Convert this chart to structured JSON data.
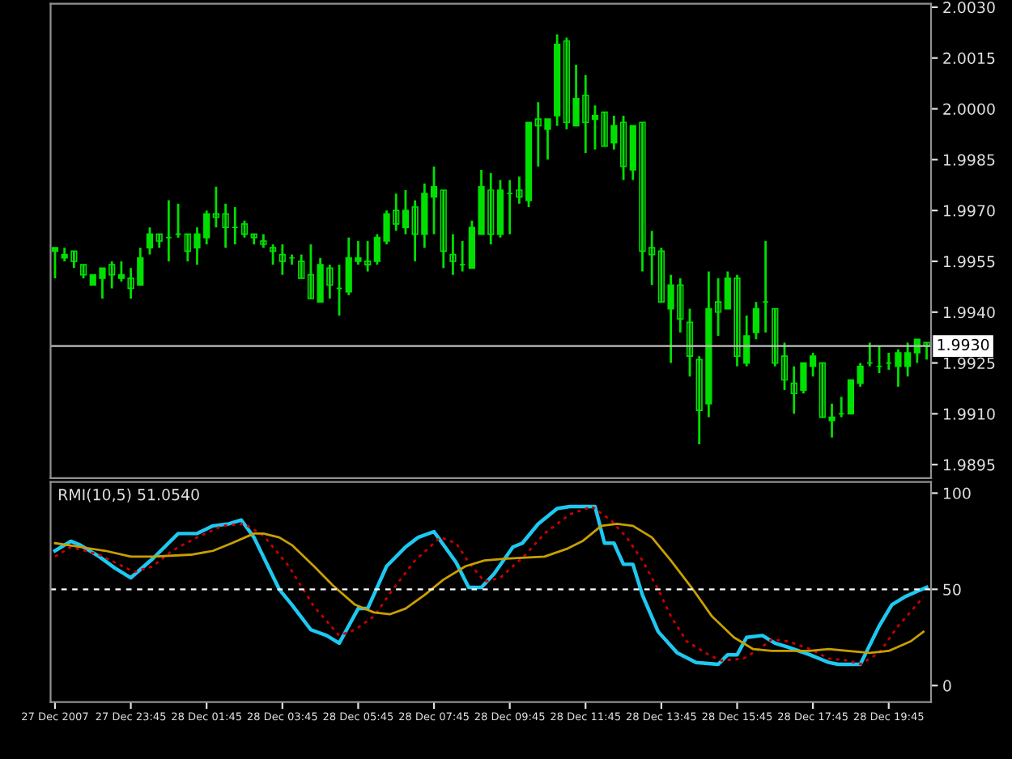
{
  "chart_data": [
    {
      "type": "candlestick",
      "color": "#00e000",
      "x": [
        "2007-12-27T21:45",
        "2007-12-27T22:00",
        "2007-12-27T22:15",
        "2007-12-27T22:30",
        "2007-12-27T22:45",
        "2007-12-27T23:00",
        "2007-12-27T23:15",
        "2007-12-27T23:30",
        "2007-12-27T23:45",
        "2007-12-28T00:00",
        "2007-12-28T00:15",
        "2007-12-28T00:30",
        "2007-12-28T00:45",
        "2007-12-28T01:00",
        "2007-12-28T01:15",
        "2007-12-28T01:30",
        "2007-12-28T01:45",
        "2007-12-28T02:00",
        "2007-12-28T02:15",
        "2007-12-28T02:30",
        "2007-12-28T02:45",
        "2007-12-28T03:00",
        "2007-12-28T03:15",
        "2007-12-28T03:30",
        "2007-12-28T03:45",
        "2007-12-28T04:00",
        "2007-12-28T04:15",
        "2007-12-28T04:30",
        "2007-12-28T04:45",
        "2007-12-28T05:00",
        "2007-12-28T05:15",
        "2007-12-28T05:30",
        "2007-12-28T05:45",
        "2007-12-28T06:00",
        "2007-12-28T06:15",
        "2007-12-28T06:30",
        "2007-12-28T06:45",
        "2007-12-28T07:00",
        "2007-12-28T07:15",
        "2007-12-28T07:30",
        "2007-12-28T07:45",
        "2007-12-28T08:00",
        "2007-12-28T08:15",
        "2007-12-28T08:30",
        "2007-12-28T08:45",
        "2007-12-28T09:00",
        "2007-12-28T09:15",
        "2007-12-28T09:30",
        "2007-12-28T09:45",
        "2007-12-28T10:00",
        "2007-12-28T10:15",
        "2007-12-28T10:30",
        "2007-12-28T10:45",
        "2007-12-28T11:00",
        "2007-12-28T11:15",
        "2007-12-28T11:30",
        "2007-12-28T11:45",
        "2007-12-28T12:00",
        "2007-12-28T12:15",
        "2007-12-28T12:30",
        "2007-12-28T12:45",
        "2007-12-28T13:00",
        "2007-12-28T13:15",
        "2007-12-28T13:30",
        "2007-12-28T13:45",
        "2007-12-28T14:00",
        "2007-12-28T14:15",
        "2007-12-28T14:30",
        "2007-12-28T14:45",
        "2007-12-28T15:00",
        "2007-12-28T15:15",
        "2007-12-28T15:30",
        "2007-12-28T15:45",
        "2007-12-28T16:00",
        "2007-12-28T16:15",
        "2007-12-28T16:30",
        "2007-12-28T16:45",
        "2007-12-28T17:00",
        "2007-12-28T17:15",
        "2007-12-28T17:30",
        "2007-12-28T17:45",
        "2007-12-28T18:00",
        "2007-12-28T18:15",
        "2007-12-28T18:30",
        "2007-12-28T18:45",
        "2007-12-28T19:00",
        "2007-12-28T19:15",
        "2007-12-28T19:30",
        "2007-12-28T19:45",
        "2007-12-28T20:00",
        "2007-12-28T20:15",
        "2007-12-28T20:30",
        "2007-12-28T20:45"
      ],
      "ohlc": [
        [
          1.9958,
          1.9959,
          1.995,
          1.9959
        ],
        [
          1.9956,
          1.9959,
          1.9955,
          1.9957
        ],
        [
          1.9958,
          1.9958,
          1.9953,
          1.9955
        ],
        [
          1.9954,
          1.9954,
          1.995,
          1.9951
        ],
        [
          1.9948,
          1.9951,
          1.9948,
          1.9951
        ],
        [
          1.995,
          1.9953,
          1.9944,
          1.9953
        ],
        [
          1.9954,
          1.9955,
          1.9947,
          1.9951
        ],
        [
          1.995,
          1.9955,
          1.9949,
          1.9951
        ],
        [
          1.995,
          1.9953,
          1.9944,
          1.9947
        ],
        [
          1.9948,
          1.9959,
          1.9948,
          1.9956
        ],
        [
          1.9959,
          1.9965,
          1.9957,
          1.9963
        ],
        [
          1.9963,
          1.9963,
          1.9959,
          1.9961
        ],
        [
          1.9962,
          1.9973,
          1.9955,
          1.9962
        ],
        [
          1.9963,
          1.9972,
          1.9962,
          1.9963
        ],
        [
          1.9963,
          1.9963,
          1.9955,
          1.9958
        ],
        [
          1.9959,
          1.9965,
          1.9954,
          1.9963
        ],
        [
          1.9962,
          1.997,
          1.996,
          1.9969
        ],
        [
          1.9969,
          1.9977,
          1.9965,
          1.9968
        ],
        [
          1.9969,
          1.9972,
          1.9959,
          1.9965
        ],
        [
          1.9965,
          1.9971,
          1.996,
          1.9965
        ],
        [
          1.9966,
          1.9967,
          1.9962,
          1.9963
        ],
        [
          1.9963,
          1.9963,
          1.996,
          1.9962
        ],
        [
          1.9961,
          1.9963,
          1.9959,
          1.996
        ],
        [
          1.9959,
          1.996,
          1.9954,
          1.9958
        ],
        [
          1.9957,
          1.996,
          1.9951,
          1.9955
        ],
        [
          1.9956,
          1.9957,
          1.9954,
          1.9956
        ],
        [
          1.9955,
          1.9957,
          1.995,
          1.995
        ],
        [
          1.9951,
          1.996,
          1.9944,
          1.9944
        ],
        [
          1.9943,
          1.9956,
          1.9943,
          1.9954
        ],
        [
          1.9953,
          1.9954,
          1.9944,
          1.9948
        ],
        [
          1.9947,
          1.9954,
          1.9939,
          1.9947
        ],
        [
          1.9946,
          1.9962,
          1.9945,
          1.9956
        ],
        [
          1.9955,
          1.9961,
          1.9954,
          1.9956
        ],
        [
          1.9955,
          1.9961,
          1.9952,
          1.9954
        ],
        [
          1.9955,
          1.9963,
          1.9954,
          1.9962
        ],
        [
          1.9961,
          1.997,
          1.996,
          1.9969
        ],
        [
          1.997,
          1.9975,
          1.9964,
          1.9966
        ],
        [
          1.9965,
          1.9976,
          1.9963,
          1.997
        ],
        [
          1.9971,
          1.9973,
          1.9955,
          1.9963
        ],
        [
          1.9963,
          1.9978,
          1.9959,
          1.9975
        ],
        [
          1.9974,
          1.9983,
          1.9963,
          1.9977
        ],
        [
          1.9976,
          1.9976,
          1.9953,
          1.9958
        ],
        [
          1.9957,
          1.9963,
          1.9951,
          1.9955
        ],
        [
          1.9954,
          1.9961,
          1.9952,
          1.9954
        ],
        [
          1.9953,
          1.9967,
          1.9953,
          1.9965
        ],
        [
          1.9963,
          1.9982,
          1.9963,
          1.9977
        ],
        [
          1.9976,
          1.9981,
          1.996,
          1.9963
        ],
        [
          1.9963,
          1.9979,
          1.9962,
          1.9976
        ],
        [
          1.9975,
          1.9979,
          1.9963,
          1.9975
        ],
        [
          1.9976,
          1.998,
          1.9972,
          1.9974
        ],
        [
          1.9973,
          1.9996,
          1.9971,
          1.9996
        ],
        [
          1.9997,
          2.0002,
          1.9983,
          1.9995
        ],
        [
          1.9994,
          1.9997,
          1.9985,
          1.9997
        ],
        [
          1.9998,
          2.0022,
          1.9995,
          2.0019
        ],
        [
          2.002,
          2.0021,
          1.9994,
          1.9996
        ],
        [
          1.9995,
          2.0013,
          1.9995,
          2.0003
        ],
        [
          2.0004,
          2.001,
          1.9987,
          1.9996
        ],
        [
          1.9997,
          2.0001,
          1.9988,
          1.9998
        ],
        [
          1.9999,
          1.9999,
          1.9989,
          1.9989
        ],
        [
          1.999,
          1.9998,
          1.9988,
          1.9995
        ],
        [
          1.9996,
          1.9998,
          1.9979,
          1.9983
        ],
        [
          1.9982,
          1.9995,
          1.9979,
          1.9995
        ],
        [
          1.9996,
          1.9996,
          1.9952,
          1.9958
        ],
        [
          1.9959,
          1.9964,
          1.9948,
          1.9957
        ],
        [
          1.9958,
          1.9959,
          1.9943,
          1.9943
        ],
        [
          1.9941,
          1.9951,
          1.9925,
          1.9948
        ],
        [
          1.9948,
          1.995,
          1.9934,
          1.9938
        ],
        [
          1.9937,
          1.9941,
          1.9921,
          1.9927
        ],
        [
          1.9926,
          1.9927,
          1.9901,
          1.9911
        ],
        [
          1.9913,
          1.9952,
          1.9909,
          1.9941
        ],
        [
          1.9943,
          1.995,
          1.9933,
          1.994
        ],
        [
          1.9941,
          1.9952,
          1.9941,
          1.995
        ],
        [
          1.995,
          1.9951,
          1.9924,
          1.9927
        ],
        [
          1.9925,
          1.9939,
          1.9924,
          1.9933
        ],
        [
          1.9934,
          1.9943,
          1.9932,
          1.9941
        ],
        [
          1.9943,
          1.9961,
          1.9934,
          1.9943
        ],
        [
          1.9941,
          1.9941,
          1.9924,
          1.9925
        ],
        [
          1.9927,
          1.9931,
          1.9917,
          1.992
        ],
        [
          1.9919,
          1.9924,
          1.991,
          1.9916
        ],
        [
          1.9917,
          1.9925,
          1.9916,
          1.9925
        ],
        [
          1.9924,
          1.9928,
          1.9921,
          1.9927
        ],
        [
          1.9925,
          1.9925,
          1.9909,
          1.9909
        ],
        [
          1.9908,
          1.9913,
          1.9903,
          1.9909
        ],
        [
          1.991,
          1.9915,
          1.9909,
          1.991
        ],
        [
          1.991,
          1.992,
          1.991,
          1.992
        ],
        [
          1.9919,
          1.9925,
          1.9918,
          1.9924
        ],
        [
          1.9925,
          1.9931,
          1.9924,
          1.9925
        ],
        [
          1.9924,
          1.993,
          1.9922,
          1.9924
        ],
        [
          1.9925,
          1.9928,
          1.9923,
          1.9925
        ],
        [
          1.9924,
          1.9929,
          1.9918,
          1.9928
        ],
        [
          1.9924,
          1.9931,
          1.9921,
          1.9928
        ],
        [
          1.9928,
          1.9932,
          1.9925,
          1.9932
        ],
        [
          1.9931,
          1.9931,
          1.9926,
          1.993
        ]
      ],
      "xlim": [
        "2007-12-27T21:38",
        "2007-12-28T20:52"
      ],
      "ylim": [
        1.9891,
        2.0031
      ],
      "yticks": [
        {
          "value": 2.003,
          "label": "2.0030"
        },
        {
          "value": 2.0015,
          "label": "2.0015"
        },
        {
          "value": 2.0,
          "label": "2.0000"
        },
        {
          "value": 1.9985,
          "label": "1.9985"
        },
        {
          "value": 1.997,
          "label": "1.9970"
        },
        {
          "value": 1.9955,
          "label": "1.9955"
        },
        {
          "value": 1.994,
          "label": "1.9940"
        },
        {
          "value": 1.9925,
          "label": "1.9925"
        },
        {
          "value": 1.991,
          "label": "1.9910"
        },
        {
          "value": 1.9895,
          "label": "1.9895"
        }
      ],
      "ref_lines": [
        {
          "axis": "y",
          "value": 1.993,
          "label": "1.9930",
          "color": "#c0c0c0"
        }
      ],
      "tick_labels": "y",
      "grid": false
    },
    {
      "type": "line",
      "title": "RMI(10,5) 51.0540",
      "series": [
        {
          "color": "#1ec8f0",
          "line_style": "solid",
          "x": [
            "2007-12-27T21:45",
            "2007-12-27T22:10",
            "2007-12-27T22:25",
            "2007-12-27T22:55",
            "2007-12-27T23:20",
            "2007-12-27T23:45",
            "2007-12-28T00:20",
            "2007-12-28T01:00",
            "2007-12-28T01:30",
            "2007-12-28T01:55",
            "2007-12-28T02:20",
            "2007-12-28T02:40",
            "2007-12-28T03:00",
            "2007-12-28T03:40",
            "2007-12-28T04:00",
            "2007-12-28T04:30",
            "2007-12-28T04:55",
            "2007-12-28T05:15",
            "2007-12-28T05:45",
            "2007-12-28T06:00",
            "2007-12-28T06:30",
            "2007-12-28T07:00",
            "2007-12-28T07:20",
            "2007-12-28T07:45",
            "2007-12-28T08:20",
            "2007-12-28T08:40",
            "2007-12-28T09:00",
            "2007-12-28T09:20",
            "2007-12-28T09:50",
            "2007-12-28T10:05",
            "2007-12-28T10:30",
            "2007-12-28T11:00",
            "2007-12-28T11:20",
            "2007-12-28T12:00",
            "2007-12-28T12:15",
            "2007-12-28T12:30",
            "2007-12-28T12:45",
            "2007-12-28T13:00",
            "2007-12-28T13:15",
            "2007-12-28T13:40",
            "2007-12-28T14:10",
            "2007-12-28T14:40",
            "2007-12-28T15:15",
            "2007-12-28T15:30",
            "2007-12-28T15:45",
            "2007-12-28T16:00",
            "2007-12-28T16:25",
            "2007-12-28T16:45",
            "2007-12-28T17:05",
            "2007-12-28T17:40",
            "2007-12-28T18:10",
            "2007-12-28T18:25",
            "2007-12-28T19:00",
            "2007-12-28T19:30",
            "2007-12-28T19:50",
            "2007-12-28T20:10",
            "2007-12-28T20:30",
            "2007-12-28T20:45"
          ],
          "values": [
            70,
            75,
            73,
            67,
            61,
            56,
            66,
            79,
            79,
            83,
            84,
            86,
            77,
            50,
            42,
            29,
            26,
            22,
            40,
            40,
            62,
            72,
            77,
            80,
            64,
            51,
            51,
            58,
            72,
            74,
            84,
            92,
            93,
            93,
            74,
            74,
            63,
            63,
            47,
            28,
            17,
            12,
            11,
            16,
            16,
            25,
            26,
            22,
            20,
            16,
            12,
            11,
            11,
            31,
            42,
            46,
            49,
            51
          ]
        },
        {
          "color": "#c80000",
          "line_style": "dotted",
          "x": [
            "2007-12-27T21:45",
            "2007-12-27T22:10",
            "2007-12-27T22:55",
            "2007-12-27T23:20",
            "2007-12-27T23:50",
            "2007-12-28T00:20",
            "2007-12-28T00:50",
            "2007-12-28T01:30",
            "2007-12-28T02:10",
            "2007-12-28T02:45",
            "2007-12-28T03:15",
            "2007-12-28T03:55",
            "2007-12-28T04:35",
            "2007-12-28T05:15",
            "2007-12-28T05:40",
            "2007-12-28T06:10",
            "2007-12-28T06:40",
            "2007-12-28T07:15",
            "2007-12-28T07:55",
            "2007-12-28T08:20",
            "2007-12-28T08:40",
            "2007-12-28T09:05",
            "2007-12-28T09:30",
            "2007-12-28T10:10",
            "2007-12-28T10:40",
            "2007-12-28T11:20",
            "2007-12-28T11:55",
            "2007-12-28T12:25",
            "2007-12-28T12:50",
            "2007-12-28T13:15",
            "2007-12-28T13:40",
            "2007-12-28T14:00",
            "2007-12-28T14:25",
            "2007-12-28T15:00",
            "2007-12-28T15:20",
            "2007-12-28T15:55",
            "2007-12-28T16:20",
            "2007-12-28T16:40",
            "2007-12-28T17:05",
            "2007-12-28T17:40",
            "2007-12-28T18:10",
            "2007-12-28T18:40",
            "2007-12-28T19:00",
            "2007-12-28T19:30",
            "2007-12-28T20:00",
            "2007-12-28T20:40"
          ],
          "values": [
            67,
            72,
            68,
            64,
            59,
            62,
            70,
            77,
            83,
            84,
            78,
            62,
            41,
            26,
            29,
            36,
            50,
            65,
            77,
            74,
            64,
            54,
            56,
            68,
            79,
            89,
            93,
            86,
            77,
            65,
            50,
            36,
            23,
            16,
            13,
            14,
            19,
            24,
            23,
            19,
            14,
            13,
            11,
            17,
            31,
            46
          ]
        },
        {
          "color": "#c8a000",
          "line_style": "solid",
          "x": [
            "2007-12-27T21:45",
            "2007-12-27T22:25",
            "2007-12-27T23:05",
            "2007-12-27T23:45",
            "2007-12-28T00:20",
            "2007-12-28T01:20",
            "2007-12-28T01:55",
            "2007-12-28T02:25",
            "2007-12-28T03:00",
            "2007-12-28T03:15",
            "2007-12-28T03:40",
            "2007-12-28T04:00",
            "2007-12-28T04:35",
            "2007-12-28T05:05",
            "2007-12-28T05:40",
            "2007-12-28T06:10",
            "2007-12-28T06:35",
            "2007-12-28T07:00",
            "2007-12-28T07:30",
            "2007-12-28T08:00",
            "2007-12-28T08:35",
            "2007-12-28T09:05",
            "2007-12-28T09:40",
            "2007-12-28T10:40",
            "2007-12-28T11:15",
            "2007-12-28T11:40",
            "2007-12-28T12:10",
            "2007-12-28T12:35",
            "2007-12-28T13:00",
            "2007-12-28T13:30",
            "2007-12-28T14:00",
            "2007-12-28T14:35",
            "2007-12-28T15:05",
            "2007-12-28T15:40",
            "2007-12-28T16:10",
            "2007-12-28T16:40",
            "2007-12-28T17:40",
            "2007-12-28T18:10",
            "2007-12-28T18:40",
            "2007-12-28T19:15",
            "2007-12-28T19:45",
            "2007-12-28T20:20",
            "2007-12-28T20:40"
          ],
          "values": [
            74,
            72,
            70,
            67,
            67,
            68,
            70,
            74,
            79,
            79,
            77,
            73,
            62,
            52,
            42,
            38,
            37,
            40,
            47,
            55,
            62,
            65,
            66,
            67,
            71,
            75,
            83,
            84,
            83,
            77,
            65,
            50,
            36,
            25,
            19,
            18,
            18,
            19,
            18,
            17,
            18,
            23,
            28
          ]
        }
      ],
      "xlim": [
        "2007-12-27T21:38",
        "2007-12-28T20:52"
      ],
      "ylim": [
        -8.6,
        105.8
      ],
      "yticks": [
        0,
        50,
        100
      ],
      "xticks": [
        {
          "value": "2007-12-27T21:45",
          "label": "27 Dec 2007"
        },
        {
          "value": "2007-12-27T23:45",
          "label": "27 Dec 23:45"
        },
        {
          "value": "2007-12-28T01:45",
          "label": "28 Dec 01:45"
        },
        {
          "value": "2007-12-28T03:45",
          "label": "28 Dec 03:45"
        },
        {
          "value": "2007-12-28T05:45",
          "label": "28 Dec 05:45"
        },
        {
          "value": "2007-12-28T07:45",
          "label": "28 Dec 07:45"
        },
        {
          "value": "2007-12-28T09:45",
          "label": "28 Dec 09:45"
        },
        {
          "value": "2007-12-28T11:45",
          "label": "28 Dec 11:45"
        },
        {
          "value": "2007-12-28T13:45",
          "label": "28 Dec 13:45"
        },
        {
          "value": "2007-12-28T15:45",
          "label": "28 Dec 15:45"
        },
        {
          "value": "2007-12-28T17:45",
          "label": "28 Dec 17:45"
        },
        {
          "value": "2007-12-28T19:45",
          "label": "28 Dec 19:45"
        }
      ],
      "ref_lines": [
        {
          "axis": "y",
          "value": 50,
          "color": "#ffffff",
          "line_style": "dashed"
        }
      ],
      "grid": false
    }
  ]
}
